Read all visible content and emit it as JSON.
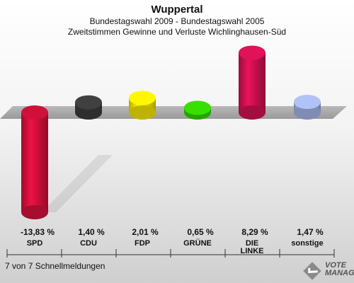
{
  "header": {
    "title": "Wuppertal",
    "subtitle": "Bundestagswahl 2009 - Bundestagswahl 2005",
    "subtitle2": "Zweitstimmen Gewinne und Verluste Wichlinghausen-Süd"
  },
  "footer": {
    "text": "7 von 7 Schnellmeldungen"
  },
  "logo": {
    "line1": "VOTE",
    "line2": "MANAGER"
  },
  "chart_data": {
    "type": "bar",
    "categories": [
      "SPD",
      "CDU",
      "FDP",
      "GRÜNE",
      "DIE LINKE",
      "sonstige"
    ],
    "values": [
      -13.83,
      1.4,
      2.01,
      0.65,
      8.29,
      1.47
    ],
    "value_labels": [
      "-13,83 %",
      "1,40 %",
      "2,01 %",
      "0,65 %",
      "8,29 %",
      "1,47 %"
    ],
    "colors": [
      "#d0103a",
      "#3a3a3a",
      "#f0e000",
      "#33cc00",
      "#cc1050",
      "#a0b0e0"
    ],
    "title": "Wuppertal",
    "grid": false,
    "legend": "none"
  }
}
